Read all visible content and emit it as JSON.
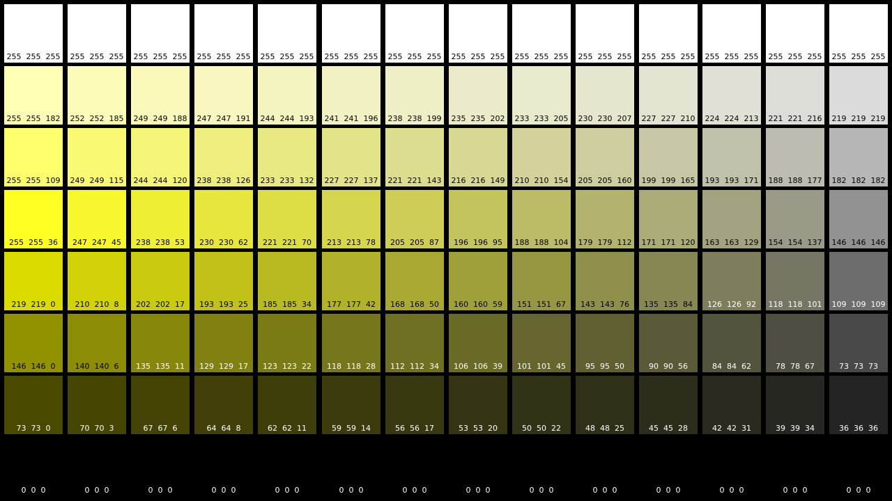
{
  "chart_data": {
    "type": "heatmap",
    "rows": [
      {
        "cells": [
          {
            "label": "255  255  255",
            "color": "#ffffff",
            "text_color": "#000000"
          },
          {
            "label": "255  255  255",
            "color": "#ffffff",
            "text_color": "#000000"
          },
          {
            "label": "255  255  255",
            "color": "#ffffff",
            "text_color": "#000000"
          },
          {
            "label": "255  255  255",
            "color": "#ffffff",
            "text_color": "#000000"
          },
          {
            "label": "255  255  255",
            "color": "#ffffff",
            "text_color": "#000000"
          },
          {
            "label": "255  255  255",
            "color": "#ffffff",
            "text_color": "#000000"
          },
          {
            "label": "255  255  255",
            "color": "#ffffff",
            "text_color": "#000000"
          },
          {
            "label": "255  255  255",
            "color": "#ffffff",
            "text_color": "#000000"
          },
          {
            "label": "255  255  255",
            "color": "#ffffff",
            "text_color": "#000000"
          },
          {
            "label": "255  255  255",
            "color": "#ffffff",
            "text_color": "#000000"
          },
          {
            "label": "255  255  255",
            "color": "#ffffff",
            "text_color": "#000000"
          },
          {
            "label": "255  255  255",
            "color": "#ffffff",
            "text_color": "#000000"
          },
          {
            "label": "255  255  255",
            "color": "#ffffff",
            "text_color": "#000000"
          },
          {
            "label": "255  255  255",
            "color": "#ffffff",
            "text_color": "#000000"
          }
        ]
      },
      {
        "cells": [
          {
            "label": "255  255  182",
            "color": "#ffffb6",
            "text_color": "#000000"
          },
          {
            "label": "252  252  185",
            "color": "#fcfcb9",
            "text_color": "#000000"
          },
          {
            "label": "249  249  188",
            "color": "#f9f9bc",
            "text_color": "#000000"
          },
          {
            "label": "247  247  191",
            "color": "#f7f7bf",
            "text_color": "#000000"
          },
          {
            "label": "244  244  193",
            "color": "#f4f4c1",
            "text_color": "#000000"
          },
          {
            "label": "241  241  196",
            "color": "#f1f1c4",
            "text_color": "#000000"
          },
          {
            "label": "238  238  199",
            "color": "#eeeec7",
            "text_color": "#000000"
          },
          {
            "label": "235  235  202",
            "color": "#ebebca",
            "text_color": "#000000"
          },
          {
            "label": "233  233  205",
            "color": "#e9e9cd",
            "text_color": "#000000"
          },
          {
            "label": "230  230  207",
            "color": "#e6e6cf",
            "text_color": "#000000"
          },
          {
            "label": "227  227  210",
            "color": "#e3e3d2",
            "text_color": "#000000"
          },
          {
            "label": "224  224  213",
            "color": "#e0e0d5",
            "text_color": "#000000"
          },
          {
            "label": "221  221  216",
            "color": "#ddddd8",
            "text_color": "#000000"
          },
          {
            "label": "219  219  219",
            "color": "#dbdbdb",
            "text_color": "#000000"
          }
        ]
      },
      {
        "cells": [
          {
            "label": "255  255  109",
            "color": "#ffff6d",
            "text_color": "#000000"
          },
          {
            "label": "249  249  115",
            "color": "#f9f973",
            "text_color": "#000000"
          },
          {
            "label": "244  244  120",
            "color": "#f4f478",
            "text_color": "#000000"
          },
          {
            "label": "238  238  126",
            "color": "#eeee7e",
            "text_color": "#000000"
          },
          {
            "label": "233  233  132",
            "color": "#e9e984",
            "text_color": "#000000"
          },
          {
            "label": "227  227  137",
            "color": "#e3e389",
            "text_color": "#000000"
          },
          {
            "label": "221  221  143",
            "color": "#dddd8f",
            "text_color": "#000000"
          },
          {
            "label": "216  216  149",
            "color": "#d8d895",
            "text_color": "#000000"
          },
          {
            "label": "210  210  154",
            "color": "#d2d29a",
            "text_color": "#000000"
          },
          {
            "label": "205  205  160",
            "color": "#cdcda0",
            "text_color": "#000000"
          },
          {
            "label": "199  199  165",
            "color": "#c7c7a5",
            "text_color": "#000000"
          },
          {
            "label": "193  193  171",
            "color": "#c1c1ab",
            "text_color": "#000000"
          },
          {
            "label": "188  188  177",
            "color": "#bcbcb1",
            "text_color": "#000000"
          },
          {
            "label": "182  182  182",
            "color": "#b6b6b6",
            "text_color": "#000000"
          }
        ]
      },
      {
        "cells": [
          {
            "label": "255  255  36",
            "color": "#ffff24",
            "text_color": "#000000"
          },
          {
            "label": "247  247  45",
            "color": "#f7f72d",
            "text_color": "#000000"
          },
          {
            "label": "238  238  53",
            "color": "#eeee35",
            "text_color": "#000000"
          },
          {
            "label": "230  230  62",
            "color": "#e6e63e",
            "text_color": "#000000"
          },
          {
            "label": "221  221  70",
            "color": "#dddd46",
            "text_color": "#000000"
          },
          {
            "label": "213  213  78",
            "color": "#d5d54e",
            "text_color": "#000000"
          },
          {
            "label": "205  205  87",
            "color": "#cdcd57",
            "text_color": "#000000"
          },
          {
            "label": "196  196  95",
            "color": "#c4c45f",
            "text_color": "#000000"
          },
          {
            "label": "188  188  104",
            "color": "#bcbc68",
            "text_color": "#000000"
          },
          {
            "label": "179  179  112",
            "color": "#b3b370",
            "text_color": "#000000"
          },
          {
            "label": "171  171  120",
            "color": "#abab78",
            "text_color": "#000000"
          },
          {
            "label": "163  163  129",
            "color": "#a3a381",
            "text_color": "#000000"
          },
          {
            "label": "154  154  137",
            "color": "#9a9a89",
            "text_color": "#000000"
          },
          {
            "label": "146  146  146",
            "color": "#929292",
            "text_color": "#000000"
          }
        ]
      },
      {
        "cells": [
          {
            "label": "219  219  0",
            "color": "#dbdb00",
            "text_color": "#000000"
          },
          {
            "label": "210  210  8",
            "color": "#d2d208",
            "text_color": "#000000"
          },
          {
            "label": "202  202  17",
            "color": "#caca11",
            "text_color": "#000000"
          },
          {
            "label": "193  193  25",
            "color": "#c1c119",
            "text_color": "#000000"
          },
          {
            "label": "185  185  34",
            "color": "#b9b922",
            "text_color": "#000000"
          },
          {
            "label": "177  177  42",
            "color": "#b1b12a",
            "text_color": "#000000"
          },
          {
            "label": "168  168  50",
            "color": "#a8a832",
            "text_color": "#000000"
          },
          {
            "label": "160  160  59",
            "color": "#a0a03b",
            "text_color": "#000000"
          },
          {
            "label": "151  151  67",
            "color": "#979743",
            "text_color": "#000000"
          },
          {
            "label": "143  143  76",
            "color": "#8f8f4c",
            "text_color": "#000000"
          },
          {
            "label": "135  135  84",
            "color": "#878754",
            "text_color": "#000000"
          },
          {
            "label": "126  126  92",
            "color": "#7e7e5c",
            "text_color": "#ffffff"
          },
          {
            "label": "118  118  101",
            "color": "#767665",
            "text_color": "#ffffff"
          },
          {
            "label": "109  109  109",
            "color": "#6d6d6d",
            "text_color": "#ffffff"
          }
        ]
      },
      {
        "cells": [
          {
            "label": "146  146  0",
            "color": "#929200",
            "text_color": "#000000"
          },
          {
            "label": "140  140  6",
            "color": "#8c8c06",
            "text_color": "#000000"
          },
          {
            "label": "135  135  11",
            "color": "#87870b",
            "text_color": "#ffffff"
          },
          {
            "label": "129  129  17",
            "color": "#818111",
            "text_color": "#ffffff"
          },
          {
            "label": "123  123  22",
            "color": "#7b7b16",
            "text_color": "#ffffff"
          },
          {
            "label": "118  118  28",
            "color": "#76761c",
            "text_color": "#ffffff"
          },
          {
            "label": "112  112  34",
            "color": "#707022",
            "text_color": "#ffffff"
          },
          {
            "label": "106  106  39",
            "color": "#6a6a27",
            "text_color": "#ffffff"
          },
          {
            "label": "101  101  45",
            "color": "#65652d",
            "text_color": "#ffffff"
          },
          {
            "label": "95  95  50",
            "color": "#5f5f32",
            "text_color": "#ffffff"
          },
          {
            "label": "90  90  56",
            "color": "#5a5a38",
            "text_color": "#ffffff"
          },
          {
            "label": "84  84  62",
            "color": "#54543e",
            "text_color": "#ffffff"
          },
          {
            "label": "78  78  67",
            "color": "#4e4e43",
            "text_color": "#ffffff"
          },
          {
            "label": "73  73  73",
            "color": "#494949",
            "text_color": "#ffffff"
          }
        ]
      },
      {
        "cells": [
          {
            "label": "73  73  0",
            "color": "#494900",
            "text_color": "#ffffff"
          },
          {
            "label": "70  70  3",
            "color": "#464603",
            "text_color": "#ffffff"
          },
          {
            "label": "67  67  6",
            "color": "#434306",
            "text_color": "#ffffff"
          },
          {
            "label": "64  64  8",
            "color": "#404008",
            "text_color": "#ffffff"
          },
          {
            "label": "62  62  11",
            "color": "#3e3e0b",
            "text_color": "#ffffff"
          },
          {
            "label": "59  59  14",
            "color": "#3b3b0e",
            "text_color": "#ffffff"
          },
          {
            "label": "56  56  17",
            "color": "#383811",
            "text_color": "#ffffff"
          },
          {
            "label": "53  53  20",
            "color": "#353514",
            "text_color": "#ffffff"
          },
          {
            "label": "50  50  22",
            "color": "#323216",
            "text_color": "#ffffff"
          },
          {
            "label": "48  48  25",
            "color": "#303019",
            "text_color": "#ffffff"
          },
          {
            "label": "45  45  28",
            "color": "#2d2d1c",
            "text_color": "#ffffff"
          },
          {
            "label": "42  42  31",
            "color": "#2a2a1f",
            "text_color": "#ffffff"
          },
          {
            "label": "39  39  34",
            "color": "#272722",
            "text_color": "#ffffff"
          },
          {
            "label": "36  36  36",
            "color": "#242424",
            "text_color": "#ffffff"
          }
        ]
      },
      {
        "cells": [
          {
            "label": "0  0  0",
            "color": "#000000",
            "text_color": "#ffffff"
          },
          {
            "label": "0  0  0",
            "color": "#000000",
            "text_color": "#ffffff"
          },
          {
            "label": "0  0  0",
            "color": "#000000",
            "text_color": "#ffffff"
          },
          {
            "label": "0  0  0",
            "color": "#000000",
            "text_color": "#ffffff"
          },
          {
            "label": "0  0  0",
            "color": "#000000",
            "text_color": "#ffffff"
          },
          {
            "label": "0  0  0",
            "color": "#000000",
            "text_color": "#ffffff"
          },
          {
            "label": "0  0  0",
            "color": "#000000",
            "text_color": "#ffffff"
          },
          {
            "label": "0  0  0",
            "color": "#000000",
            "text_color": "#ffffff"
          },
          {
            "label": "0  0  0",
            "color": "#000000",
            "text_color": "#ffffff"
          },
          {
            "label": "0  0  0",
            "color": "#000000",
            "text_color": "#ffffff"
          },
          {
            "label": "0  0  0",
            "color": "#000000",
            "text_color": "#ffffff"
          },
          {
            "label": "0  0  0",
            "color": "#000000",
            "text_color": "#ffffff"
          },
          {
            "label": "0  0  0",
            "color": "#000000",
            "text_color": "#ffffff"
          },
          {
            "label": "0  0  0",
            "color": "#000000",
            "text_color": "#ffffff"
          }
        ]
      }
    ]
  }
}
